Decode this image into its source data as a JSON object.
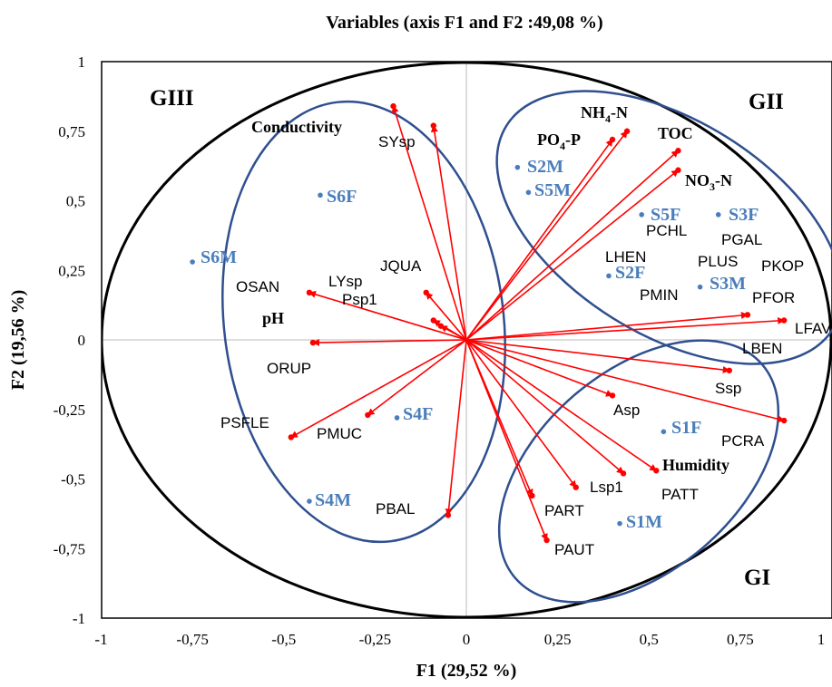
{
  "chart_data": {
    "type": "scatter",
    "title": "Variables (axis F1 and F2 :49,08 %)",
    "xlabel": "F1 (29,52 %)",
    "ylabel": "F2 (19,56 %)",
    "xlim": [
      -1,
      1
    ],
    "ylim": [
      -1,
      1
    ],
    "xticks": [
      "-1",
      "-0,75",
      "-0,5",
      "-0,25",
      "0",
      "0,25",
      "0,5",
      "0,75",
      "1"
    ],
    "yticks": [
      "1",
      "0,75",
      "0,5",
      "0,25",
      "0",
      "-0,25",
      "-0,5",
      "-0,75",
      "-1"
    ],
    "variables": [
      {
        "label": "Conductivity",
        "x": -0.09,
        "y": 0.77,
        "bold": true
      },
      {
        "label": "SYsp",
        "x": -0.2,
        "y": 0.84,
        "bold": false
      },
      {
        "label": "NH4-N",
        "x": 0.44,
        "y": 0.75,
        "bold": true
      },
      {
        "label": "PO4-P",
        "x": 0.4,
        "y": 0.72,
        "bold": true
      },
      {
        "label": "TOC",
        "x": 0.58,
        "y": 0.68,
        "bold": true
      },
      {
        "label": "NO3-N",
        "x": 0.58,
        "y": 0.61,
        "bold": true
      },
      {
        "label": "PFOR",
        "x": 0.77,
        "y": 0.09,
        "bold": false
      },
      {
        "label": "LFAV",
        "x": 0.87,
        "y": 0.07,
        "bold": false
      },
      {
        "label": "Ssp",
        "x": 0.72,
        "y": -0.11,
        "bold": false
      },
      {
        "label": "PCRA",
        "x": 0.87,
        "y": -0.29,
        "bold": false
      },
      {
        "label": "Asp",
        "x": 0.4,
        "y": -0.2,
        "bold": false
      },
      {
        "label": "Humidity",
        "x": 0.52,
        "y": -0.47,
        "bold": true
      },
      {
        "label": "Lsp1",
        "x": 0.43,
        "y": -0.48,
        "bold": false
      },
      {
        "label": "PATT",
        "x": 0.3,
        "y": -0.53,
        "bold": false
      },
      {
        "label": "PART",
        "x": 0.18,
        "y": -0.56,
        "bold": false
      },
      {
        "label": "PAUT",
        "x": 0.22,
        "y": -0.72,
        "bold": false
      },
      {
        "label": "PBAL",
        "x": -0.05,
        "y": -0.63,
        "bold": false
      },
      {
        "label": "PMUC",
        "x": -0.27,
        "y": -0.27,
        "bold": false
      },
      {
        "label": "PSFLE",
        "x": -0.48,
        "y": -0.35,
        "bold": false
      },
      {
        "label": "ORUP",
        "x": -0.42,
        "y": -0.01,
        "bold": false
      },
      {
        "label": "OSAN",
        "x": -0.43,
        "y": 0.17,
        "bold": false
      },
      {
        "label": "Psp1",
        "x": -0.11,
        "y": 0.17,
        "bold": false
      },
      {
        "label": "LYsp",
        "x": -0.07,
        "y": 0.05,
        "bold": false
      },
      {
        "label": "JQUA",
        "x": -0.09,
        "y": 0.07,
        "bold": false
      }
    ],
    "observations": [
      {
        "label": "S6F",
        "x": -0.4,
        "y": 0.52
      },
      {
        "label": "S6M",
        "x": -0.75,
        "y": 0.28
      },
      {
        "label": "S4F",
        "x": -0.19,
        "y": -0.28
      },
      {
        "label": "S4M",
        "x": -0.43,
        "y": -0.58
      },
      {
        "label": "S2M",
        "x": 0.14,
        "y": 0.62
      },
      {
        "label": "S5M",
        "x": 0.17,
        "y": 0.53
      },
      {
        "label": "S5F",
        "x": 0.48,
        "y": 0.45
      },
      {
        "label": "S3F",
        "x": 0.69,
        "y": 0.45
      },
      {
        "label": "S2F",
        "x": 0.39,
        "y": 0.23
      },
      {
        "label": "S3M",
        "x": 0.64,
        "y": 0.19
      },
      {
        "label": "S1F",
        "x": 0.54,
        "y": -0.33
      },
      {
        "label": "S1M",
        "x": 0.42,
        "y": -0.66
      }
    ],
    "extra_labels": [
      "PCHL",
      "PGAL",
      "LHEN",
      "PLUS",
      "PKOP",
      "PMIN",
      "LBEN",
      "pH"
    ],
    "groups": [
      "GI",
      "GII",
      "GIII"
    ],
    "colors": {
      "arrow": "#ff0000",
      "observation": "#4a7ebb",
      "group_outline": "#2f4f8f",
      "circle": "#000000"
    }
  }
}
